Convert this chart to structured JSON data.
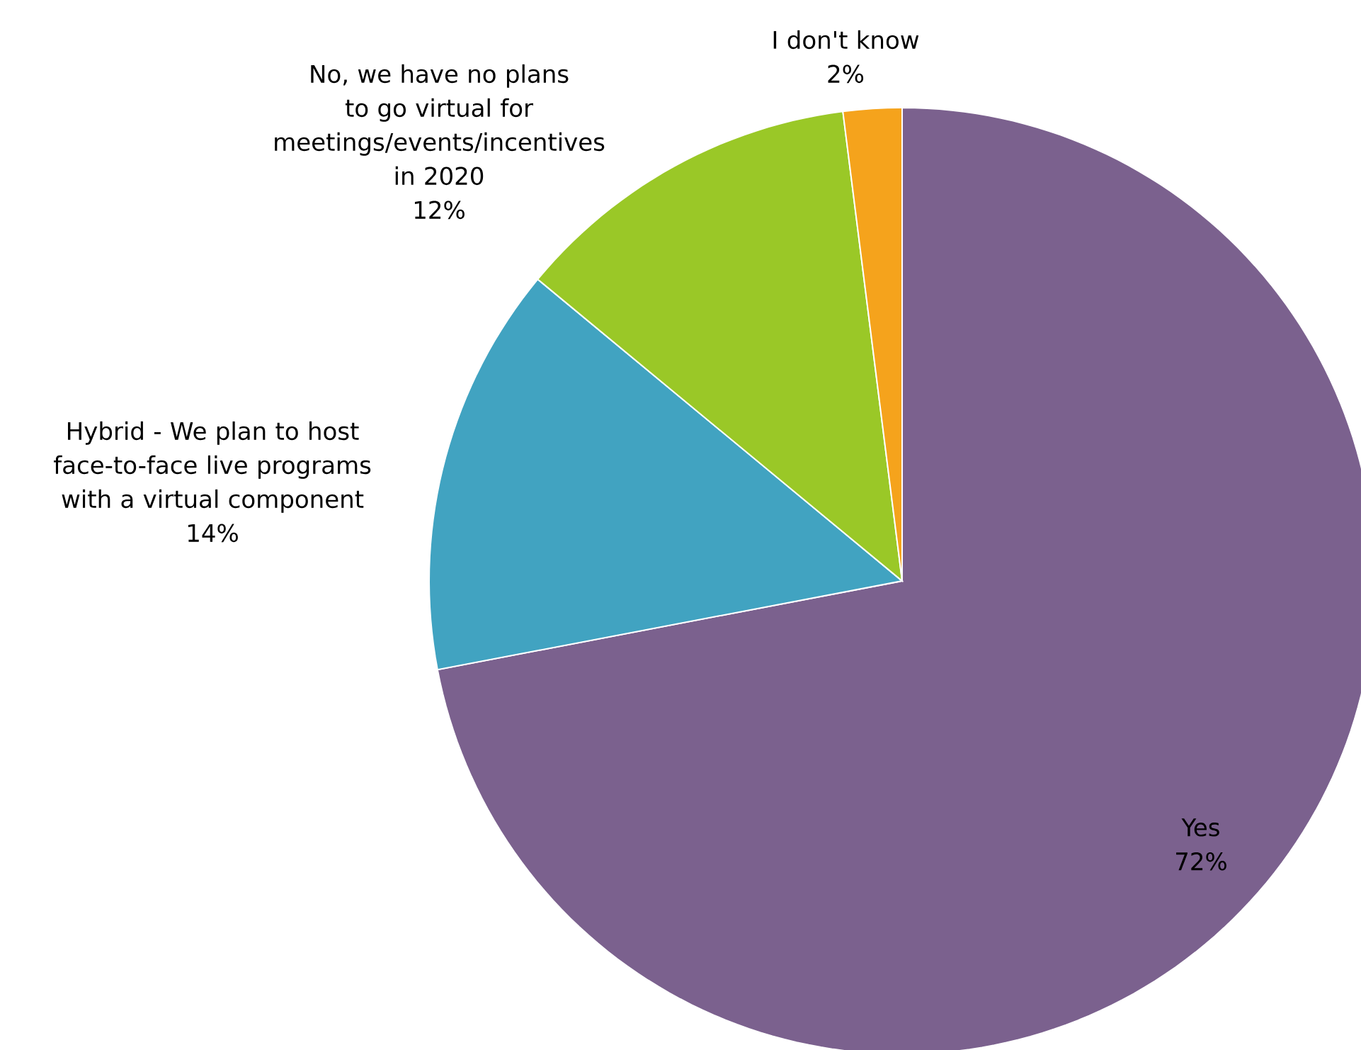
{
  "chart_data": {
    "type": "pie",
    "categories": [
      "Yes",
      "Hybrid - We plan to host face-to-face live programs with a virtual component",
      "No, we have no plans to go virtual for meetings/events/incentives in 2020",
      "I don't know"
    ],
    "values": [
      72,
      14,
      12,
      2
    ],
    "value_labels": [
      "72%",
      "14%",
      "12%",
      "2%"
    ],
    "colors": [
      "#7b618e",
      "#41a3c1",
      "#9ac827",
      "#f5a31c"
    ]
  }
}
